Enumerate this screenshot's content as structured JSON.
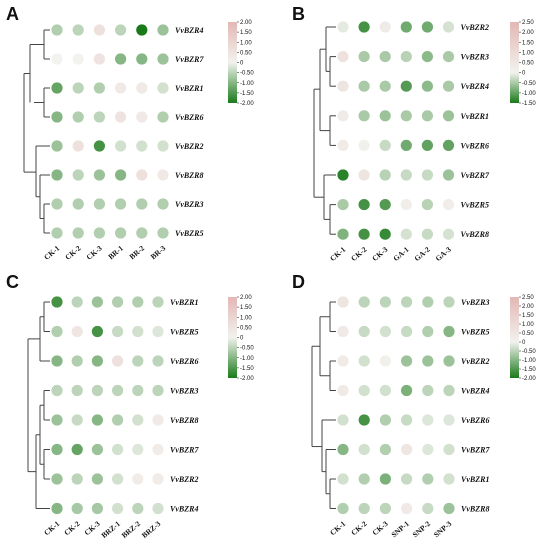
{
  "colors": {
    "low": "#1a7a1a",
    "mid": "#f2f2ee",
    "high": "#e3b7b4"
  },
  "chart_data": [
    {
      "type": "heatmap",
      "panel": "A",
      "columns": [
        "CK-1",
        "CK-2",
        "CK-3",
        "BR-1",
        "BR-2",
        "BR-3"
      ],
      "rows": [
        "VvBZR4",
        "VvBZR7",
        "VvBZR1",
        "VvBZR6",
        "VvBZR2",
        "VvBZR8",
        "VvBZR3",
        "VvBZR5"
      ],
      "values": [
        [
          -0.6,
          -0.5,
          0.6,
          -0.5,
          -2.0,
          -0.8
        ],
        [
          0.0,
          0.0,
          0.5,
          -1.0,
          -1.0,
          -0.8
        ],
        [
          -1.3,
          -0.5,
          -0.6,
          0.3,
          0.3,
          -0.3
        ],
        [
          -1.0,
          -0.6,
          -0.5,
          0.5,
          0.3,
          -0.6
        ],
        [
          -0.8,
          0.6,
          -1.6,
          -0.3,
          -0.3,
          -0.3
        ],
        [
          -1.0,
          -0.5,
          -0.8,
          -1.0,
          0.6,
          0.3
        ],
        [
          -0.6,
          -0.6,
          -0.6,
          -0.6,
          -0.6,
          -0.6
        ],
        [
          -0.6,
          -0.6,
          -0.6,
          -0.6,
          -0.6,
          -0.6
        ]
      ],
      "colorbar": {
        "min": -2.0,
        "max": 2.0,
        "ticks": [
          "2.00",
          "1.50",
          "1.00",
          "0.50",
          "0",
          "-0.50",
          "-1.00",
          "-1.50",
          "-2.00"
        ]
      }
    },
    {
      "type": "heatmap",
      "panel": "B",
      "columns": [
        "CK-1",
        "CK-2",
        "CK-3",
        "GA-1",
        "GA-2",
        "GA-3"
      ],
      "rows": [
        "VvBZR2",
        "VvBZR3",
        "VvBZR4",
        "VvBZR1",
        "VvBZR6",
        "VvBZR7",
        "VvBZR5",
        "VvBZR8"
      ],
      "values": [
        [
          -0.1,
          -1.2,
          0.3,
          -0.9,
          -0.9,
          -0.2
        ],
        [
          0.7,
          -0.5,
          -0.5,
          -0.4,
          -0.7,
          -0.5
        ],
        [
          0.6,
          -0.5,
          -0.5,
          -1.1,
          -0.7,
          -0.5
        ],
        [
          0.3,
          -0.5,
          -0.6,
          -0.5,
          -0.5,
          -0.6
        ],
        [
          0.3,
          0.1,
          -0.3,
          -0.9,
          -1.0,
          -1.0
        ],
        [
          -1.4,
          0.6,
          -0.4,
          -0.3,
          -0.3,
          -0.6
        ],
        [
          -0.5,
          -1.2,
          -1.1,
          0.2,
          -0.4,
          0.2
        ],
        [
          -0.8,
          -1.2,
          -1.3,
          -0.2,
          -0.3,
          -0.2
        ]
      ],
      "colorbar": {
        "min": -1.5,
        "max": 2.5,
        "ticks": [
          "2.50",
          "2.00",
          "1.50",
          "1.00",
          "0.50",
          "0",
          "-0.50",
          "-1.00",
          "-1.50"
        ]
      }
    },
    {
      "type": "heatmap",
      "panel": "C",
      "columns": [
        "CK-1",
        "CK-2",
        "CK-3",
        "BRZ-1",
        "BRZ-2",
        "BRZ-3"
      ],
      "rows": [
        "VvBZR1",
        "VvBZR5",
        "VvBZR6",
        "VvBZR3",
        "VvBZR8",
        "VvBZR7",
        "VvBZR2",
        "VvBZR4"
      ],
      "values": [
        [
          -1.6,
          -0.5,
          -0.8,
          -0.6,
          -0.6,
          -0.5
        ],
        [
          -0.6,
          0.4,
          -1.6,
          -0.4,
          -0.3,
          -0.2
        ],
        [
          -1.0,
          -0.6,
          -1.0,
          0.6,
          -0.5,
          -0.5
        ],
        [
          -0.5,
          -0.5,
          -0.5,
          -0.5,
          -0.5,
          -0.5
        ],
        [
          -0.8,
          -0.4,
          -1.0,
          -0.6,
          -0.3,
          0.3
        ],
        [
          -1.0,
          -1.3,
          -0.8,
          -0.3,
          -0.2,
          0.2
        ],
        [
          -0.8,
          -0.5,
          -0.8,
          -0.3,
          0.2,
          0.2
        ],
        [
          -1.0,
          -0.7,
          -0.7,
          -0.3,
          -0.5,
          -0.3
        ]
      ],
      "colorbar": {
        "min": -2.0,
        "max": 2.0,
        "ticks": [
          "2.00",
          "1.50",
          "1.00",
          "0.50",
          "0",
          "-0.50",
          "-1.00",
          "-1.50",
          "-2.00"
        ]
      }
    },
    {
      "type": "heatmap",
      "panel": "D",
      "columns": [
        "CK-1",
        "CK-2",
        "CK-3",
        "SNP-1",
        "SNP-2",
        "SNP-3"
      ],
      "rows": [
        "VvBZR3",
        "VvBZR5",
        "VvBZR2",
        "VvBZR4",
        "VvBZR6",
        "VvBZR7",
        "VvBZR1",
        "VvBZR8"
      ],
      "values": [
        [
          0.6,
          -0.5,
          -0.5,
          -0.5,
          -0.6,
          -0.5
        ],
        [
          0.4,
          -0.4,
          -0.3,
          -0.4,
          -0.6,
          -1.0
        ],
        [
          0.3,
          -0.3,
          0.1,
          -0.8,
          -0.8,
          -0.8
        ],
        [
          0.3,
          -0.3,
          -0.3,
          -1.1,
          -0.5,
          -0.5
        ],
        [
          -0.3,
          -1.6,
          -0.6,
          -0.4,
          -0.2,
          -0.2
        ],
        [
          -1.0,
          -0.3,
          -0.6,
          0.5,
          -0.2,
          -0.3
        ],
        [
          -0.3,
          -0.6,
          -1.1,
          -0.4,
          -0.6,
          -0.3
        ],
        [
          -0.6,
          -0.5,
          -0.5,
          0.4,
          -0.4,
          -0.8
        ]
      ],
      "colorbar": {
        "min": -2.0,
        "max": 2.5,
        "ticks": [
          "2.50",
          "2.00",
          "1.50",
          "1.00",
          "0.50",
          "0",
          "-0.50",
          "-1.00",
          "-1.50",
          "-2.00"
        ]
      }
    }
  ]
}
